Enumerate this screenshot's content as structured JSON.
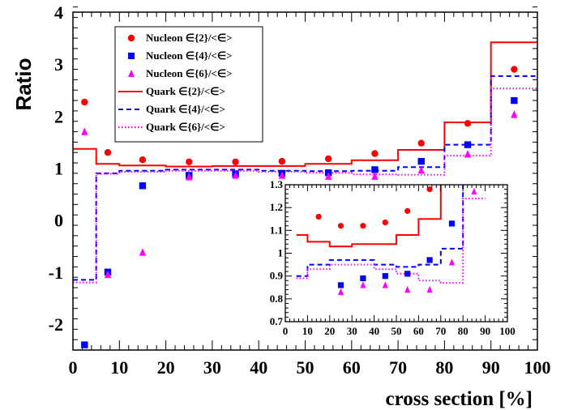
{
  "chart_data": [
    {
      "type": "scatter",
      "panel": "main",
      "xlabel": "cross section [%]",
      "ylabel": "Ratio",
      "xlim": [
        0,
        100
      ],
      "ylim": [
        -2.5,
        4
      ],
      "x_ticks": [
        "0",
        "10",
        "20",
        "30",
        "40",
        "50",
        "60",
        "70",
        "80",
        "90",
        "100"
      ],
      "y_ticks": [
        "-2",
        "-1",
        "0",
        "1",
        "2",
        "3",
        "4"
      ],
      "legend_position": "top-left",
      "series": [
        {
          "name": "Nucleon ∈{2}/<∈>",
          "kind": "points",
          "marker": "circle",
          "color": "#ff0000",
          "x": [
            2.5,
            7.5,
            15,
            25,
            35,
            45,
            55,
            65,
            75,
            85,
            95
          ],
          "y": [
            2.27,
            1.3,
            1.16,
            1.12,
            1.12,
            1.13,
            1.18,
            1.28,
            1.48,
            1.86,
            2.9
          ]
        },
        {
          "name": "Nucleon ∈{4}/<∈>",
          "kind": "points",
          "marker": "square",
          "color": "#0000ff",
          "x": [
            2.5,
            7.5,
            15,
            25,
            35,
            45,
            55,
            65,
            75,
            85,
            95
          ],
          "y": [
            -2.4,
            -1.0,
            0.66,
            0.86,
            0.89,
            0.9,
            0.91,
            0.97,
            1.13,
            1.45,
            2.3
          ]
        },
        {
          "name": "Nucleon ∈{6}/<∈>",
          "kind": "points",
          "marker": "triangle",
          "color": "#ff00ff",
          "x": [
            2.5,
            7.5,
            15,
            25,
            35,
            45,
            55,
            65,
            75,
            85,
            95
          ],
          "y": [
            1.7,
            -1.05,
            -0.62,
            0.83,
            0.86,
            0.86,
            0.84,
            0.84,
            0.96,
            1.27,
            2.03
          ]
        },
        {
          "name": "Quark ∈{2}/<∈>",
          "kind": "step",
          "line": "solid",
          "color": "#ff0000",
          "edges": [
            0,
            5,
            10,
            20,
            30,
            40,
            50,
            60,
            70,
            80,
            90,
            100
          ],
          "y": [
            1.37,
            1.08,
            1.05,
            1.03,
            1.04,
            1.04,
            1.08,
            1.15,
            1.35,
            1.88,
            3.42
          ]
        },
        {
          "name": "Quark ∈{4}/<∈>",
          "kind": "step",
          "line": "dashed",
          "color": "#0000ff",
          "edges": [
            0,
            5,
            10,
            20,
            30,
            40,
            50,
            60,
            70,
            80,
            90,
            100
          ],
          "y": [
            -1.15,
            0.9,
            0.95,
            0.97,
            0.97,
            0.95,
            0.94,
            0.95,
            1.02,
            1.45,
            2.77
          ]
        },
        {
          "name": "Quark ∈{6}/<∈>",
          "kind": "step",
          "line": "dotted",
          "color": "#ff00ff",
          "edges": [
            0,
            5,
            10,
            20,
            30,
            40,
            50,
            60,
            70,
            80,
            90,
            100
          ],
          "y": [
            -1.2,
            0.89,
            0.93,
            0.95,
            0.95,
            0.93,
            0.91,
            0.88,
            0.87,
            1.24,
            2.53
          ]
        }
      ]
    },
    {
      "type": "scatter",
      "panel": "inset",
      "xlim": [
        0,
        100
      ],
      "ylim": [
        0.7,
        1.3
      ],
      "x_ticks": [
        "0",
        "10",
        "20",
        "30",
        "40",
        "50",
        "60",
        "70",
        "80",
        "90",
        "100"
      ],
      "y_ticks": [
        "0.7",
        "0.8",
        "0.9",
        "1",
        "1.1",
        "1.2",
        "1.3"
      ],
      "series": [
        {
          "name": "Nucleon ∈{2}/<∈>",
          "kind": "points",
          "marker": "circle",
          "color": "#ff0000",
          "x": [
            15,
            25,
            35,
            45,
            55,
            65
          ],
          "y": [
            1.16,
            1.12,
            1.12,
            1.135,
            1.185,
            1.28
          ]
        },
        {
          "name": "Nucleon ∈{4}/<∈>",
          "kind": "points",
          "marker": "square",
          "color": "#0000ff",
          "x": [
            25,
            35,
            45,
            55,
            65,
            75
          ],
          "y": [
            0.86,
            0.89,
            0.9,
            0.91,
            0.97,
            1.13
          ]
        },
        {
          "name": "Nucleon ∈{6}/<∈>",
          "kind": "points",
          "marker": "triangle",
          "color": "#ff00ff",
          "x": [
            25,
            35,
            45,
            55,
            65,
            75,
            85
          ],
          "y": [
            0.83,
            0.86,
            0.86,
            0.84,
            0.84,
            0.96,
            1.27
          ]
        },
        {
          "name": "Quark ∈{2}/<∈>",
          "kind": "step",
          "line": "solid",
          "color": "#ff0000",
          "edges": [
            5,
            10,
            20,
            30,
            40,
            50,
            60,
            70,
            80
          ],
          "y": [
            1.08,
            1.05,
            1.03,
            1.04,
            1.04,
            1.08,
            1.15,
            1.35
          ]
        },
        {
          "name": "Quark ∈{4}/<∈>",
          "kind": "step",
          "line": "dashed",
          "color": "#0000ff",
          "edges": [
            5,
            10,
            20,
            30,
            40,
            50,
            60,
            70,
            80,
            90
          ],
          "y": [
            0.9,
            0.95,
            0.97,
            0.97,
            0.95,
            0.94,
            0.95,
            1.02,
            1.45
          ]
        },
        {
          "name": "Quark ∈{6}/<∈>",
          "kind": "step",
          "line": "dotted",
          "color": "#ff00ff",
          "edges": [
            5,
            10,
            20,
            30,
            40,
            50,
            60,
            70,
            80,
            90
          ],
          "y": [
            0.89,
            0.93,
            0.95,
            0.95,
            0.93,
            0.91,
            0.88,
            0.87,
            1.24
          ]
        }
      ]
    }
  ]
}
